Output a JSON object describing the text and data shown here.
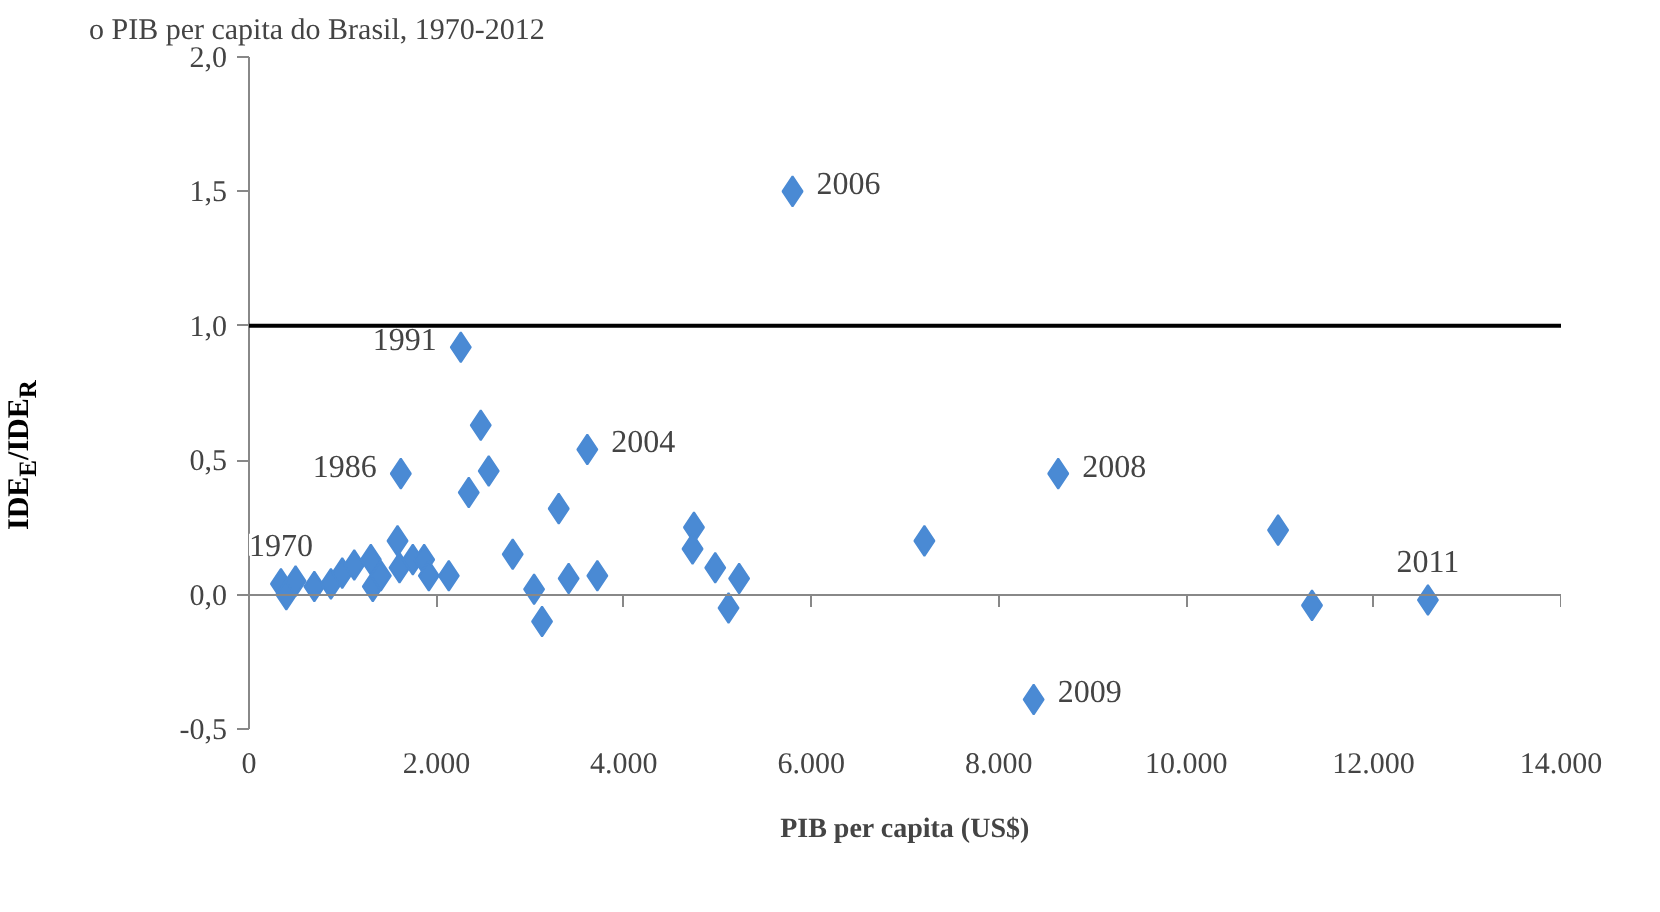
{
  "chart_data": {
    "type": "scatter",
    "title": "o PIB per capita do Brasil, 1970-2012",
    "xlabel": "PIB per capita (US$)",
    "ylabel": "IDE$_{E}$/IDE$_{R}$",
    "x": [
      341,
      398,
      497,
      697,
      874,
      995,
      1123,
      1300,
      1321,
      1407,
      1585,
      1606,
      1620,
      1748,
      1869,
      1919,
      2132,
      2260,
      2345,
      2473,
      2558,
      2814,
      3042,
      3127,
      3305,
      3411,
      3610,
      3717,
      4748,
      4733,
      4975,
      5117,
      5230,
      5800,
      7207,
      8635,
      8373,
      10981,
      11343,
      12580
    ],
    "values": [
      0.04,
      0.0,
      0.05,
      0.03,
      0.04,
      0.08,
      0.11,
      0.13,
      0.03,
      0.07,
      0.2,
      0.1,
      0.45,
      0.13,
      0.13,
      0.07,
      0.07,
      0.92,
      0.38,
      0.63,
      0.46,
      0.15,
      0.02,
      -0.1,
      0.32,
      0.06,
      0.54,
      0.07,
      0.25,
      0.17,
      0.1,
      -0.05,
      0.06,
      1.5,
      0.2,
      0.45,
      -0.39,
      0.24,
      -0.04,
      -0.02
    ],
    "color": "#4a8ad4",
    "marker": "diamond",
    "xlim": [
      0,
      14000
    ],
    "ylim": [
      -0.5,
      2.0
    ],
    "xticks": [
      {
        "value": 0,
        "label": "0"
      },
      {
        "value": 2000,
        "label": "2.000"
      },
      {
        "value": 4000,
        "label": "4.000"
      },
      {
        "value": 6000,
        "label": "6.000"
      },
      {
        "value": 8000,
        "label": "8.000"
      },
      {
        "value": 10000,
        "label": "10.000"
      },
      {
        "value": 12000,
        "label": "12.000"
      },
      {
        "value": 14000,
        "label": "14.000"
      }
    ],
    "yticks": [
      {
        "value": -0.5,
        "label": "-0,5"
      },
      {
        "value": 0,
        "label": "0,0"
      },
      {
        "value": 0.5,
        "label": "0,5"
      },
      {
        "value": 1.0,
        "label": "1,0"
      },
      {
        "value": 1.5,
        "label": "1,5"
      },
      {
        "value": 2.0,
        "label": "2,0"
      }
    ],
    "ref_lines": [
      {
        "axis": "y",
        "value": 1.0,
        "color": "#000000"
      }
    ],
    "annotations": [
      {
        "text": "1970",
        "x": 341,
        "y": 0.04
      },
      {
        "text": "1986",
        "x": 1620,
        "y": 0.45
      },
      {
        "text": "1991",
        "x": 2260,
        "y": 0.92
      },
      {
        "text": "2004",
        "x": 3610,
        "y": 0.54
      },
      {
        "text": "2006",
        "x": 5800,
        "y": 1.5
      },
      {
        "text": "2008",
        "x": 8635,
        "y": 0.45
      },
      {
        "text": "2009",
        "x": 8373,
        "y": -0.39
      },
      {
        "text": "2011",
        "x": 12580,
        "y": -0.02
      }
    ],
    "legend": false
  }
}
